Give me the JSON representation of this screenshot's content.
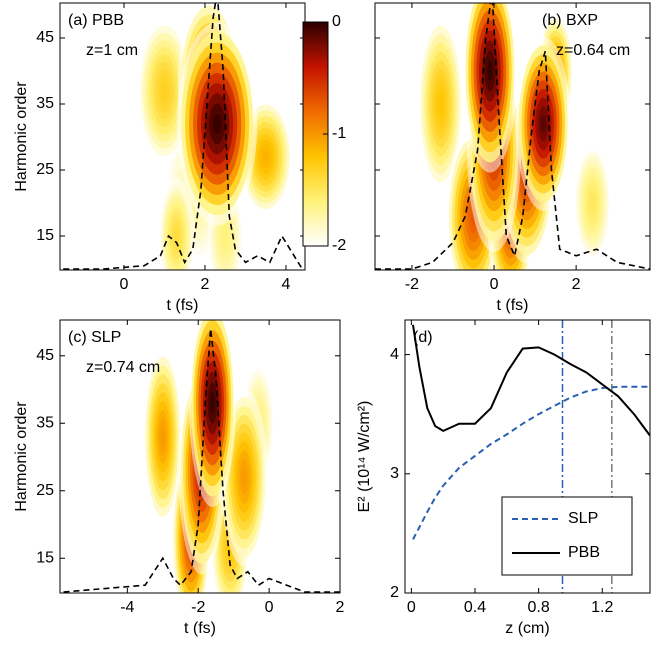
{
  "chart_data": [
    {
      "type": "heatmap",
      "label": "(a) PBB",
      "note": "z=1 cm",
      "xlabel": "t (fs)",
      "ylabel": "Harmonic order",
      "xlim": [
        -1.58,
        4.47
      ],
      "ylim": [
        9.85,
        50.3
      ],
      "xticks": [
        0,
        2,
        4
      ],
      "yticks": [
        15,
        25,
        35,
        45
      ],
      "show_yticklabels": true,
      "clim": [
        -2,
        0
      ],
      "cticks": [
        0,
        -1,
        -2
      ],
      "colorbar": true,
      "colormap": [
        "#ffffff",
        "#fff27a",
        "#ffc400",
        "#f06a00",
        "#c41200",
        "#2a0000"
      ],
      "blobs": [
        {
          "x": 1.8,
          "y": 22,
          "value": -1.7,
          "sx": 0.35,
          "sy": 5
        },
        {
          "x": 2.5,
          "y": 15,
          "value": -1.6,
          "sx": 0.2,
          "sy": 4
        },
        {
          "x": 1.3,
          "y": 15,
          "value": -1.4,
          "sx": 0.2,
          "sy": 4
        },
        {
          "x": 1.0,
          "y": 37,
          "value": -1.3,
          "sx": 0.3,
          "sy": 5
        },
        {
          "x": 3.5,
          "y": 27,
          "value": -1.1,
          "sx": 0.3,
          "sy": 4
        },
        {
          "x": 2.1,
          "y": 38,
          "value": -0.7,
          "sx": 0.35,
          "sy": 6
        },
        {
          "x": 2.3,
          "y": 32,
          "value": 0,
          "sx": 0.45,
          "sy": 7
        }
      ],
      "series": [
        {
          "color": "#000000",
          "dash": true,
          "x": [
            -1.5,
            -0.5,
            0.5,
            0.9,
            1.1,
            1.3,
            1.5,
            1.7,
            1.9,
            2.05,
            2.2,
            2.3,
            2.45,
            2.6,
            2.75,
            3.0,
            3.3,
            3.6,
            3.9,
            4.2,
            4.4
          ],
          "values": [
            10,
            10,
            10.5,
            12,
            15,
            14,
            11,
            13,
            22,
            35,
            48,
            52,
            40,
            18,
            13,
            11,
            12,
            11,
            15,
            12,
            10
          ]
        }
      ]
    },
    {
      "type": "heatmap",
      "label": "(b) BXP",
      "note": "z=0.64 cm",
      "xlabel": "t (fs)",
      "xlim": [
        -2.9,
        3.8
      ],
      "ylim": [
        9.85,
        50.3
      ],
      "xticks": [
        -2,
        0,
        2
      ],
      "yticks": [
        15,
        25,
        35,
        45
      ],
      "show_yticklabels": false,
      "clim": [
        -2,
        0
      ],
      "colorbar": false,
      "colormap": [
        "#ffffff",
        "#fff27a",
        "#ffc400",
        "#f06a00",
        "#c41200",
        "#2a0000"
      ],
      "blobs": [
        {
          "x": 2.4,
          "y": 20,
          "value": -1.5,
          "sx": 0.2,
          "sy": 4
        },
        {
          "x": -1.3,
          "y": 35,
          "value": -1.2,
          "sx": 0.25,
          "sy": 6
        },
        {
          "x": 1.5,
          "y": 40,
          "value": -1.0,
          "sx": 0.2,
          "sy": 4
        },
        {
          "x": -0.5,
          "y": 18,
          "value": -0.7,
          "sx": 0.3,
          "sy": 6
        },
        {
          "x": 0.4,
          "y": 16,
          "value": -0.7,
          "sx": 0.25,
          "sy": 5
        },
        {
          "x": 0.8,
          "y": 24,
          "value": -0.6,
          "sx": 0.3,
          "sy": 6
        },
        {
          "x": 0,
          "y": 28,
          "value": -0.5,
          "sx": 0.3,
          "sy": 7
        },
        {
          "x": 1.2,
          "y": 32,
          "value": -0.1,
          "sx": 0.3,
          "sy": 6
        },
        {
          "x": -0.1,
          "y": 40,
          "value": 0,
          "sx": 0.3,
          "sy": 7
        }
      ],
      "series": [
        {
          "color": "#000000",
          "dash": true,
          "x": [
            -2.9,
            -2,
            -1.5,
            -1.0,
            -0.7,
            -0.4,
            -0.2,
            -0.05,
            0.1,
            0.3,
            0.5,
            0.7,
            0.9,
            1.1,
            1.25,
            1.4,
            1.6,
            2.0,
            2.5,
            3.0,
            3.8
          ],
          "values": [
            10,
            10,
            11,
            14,
            18,
            28,
            45,
            52,
            35,
            15,
            12,
            18,
            30,
            40,
            43,
            25,
            13,
            12,
            13,
            11,
            10
          ]
        }
      ]
    },
    {
      "type": "heatmap",
      "label": "(c) SLP",
      "note": "z=0.74 cm",
      "xlabel": "t (fs)",
      "ylabel": "Harmonic order",
      "xlim": [
        -5.9,
        2
      ],
      "ylim": [
        9.85,
        50.3
      ],
      "xticks": [
        -4,
        -2,
        0,
        2
      ],
      "yticks": [
        15,
        25,
        35,
        45
      ],
      "show_yticklabels": true,
      "clim": [
        -2,
        0
      ],
      "colorbar": false,
      "colormap": [
        "#ffffff",
        "#fff27a",
        "#ffc400",
        "#f06a00",
        "#c41200",
        "#2a0000"
      ],
      "blobs": [
        {
          "x": -0.3,
          "y": 35,
          "value": -1.6,
          "sx": 0.2,
          "sy": 4
        },
        {
          "x": -1.1,
          "y": 17,
          "value": -1.2,
          "sx": 0.25,
          "sy": 5
        },
        {
          "x": -3.0,
          "y": 33,
          "value": -1.0,
          "sx": 0.25,
          "sy": 6
        },
        {
          "x": -0.7,
          "y": 27,
          "value": -1.0,
          "sx": 0.3,
          "sy": 6
        },
        {
          "x": -2.2,
          "y": 18,
          "value": -0.6,
          "sx": 0.25,
          "sy": 6
        },
        {
          "x": -1.9,
          "y": 28,
          "value": -0.4,
          "sx": 0.3,
          "sy": 7
        },
        {
          "x": -1.6,
          "y": 38,
          "value": 0,
          "sx": 0.3,
          "sy": 7
        }
      ],
      "series": [
        {
          "color": "#000000",
          "dash": true,
          "x": [
            -5.8,
            -3.5,
            -3,
            -2.7,
            -2.5,
            -2.2,
            -2,
            -1.8,
            -1.65,
            -1.5,
            -1.3,
            -1.1,
            -0.9,
            -0.6,
            -0.3,
            0,
            0.5,
            1,
            2
          ],
          "values": [
            10,
            11,
            15,
            12,
            11,
            13,
            20,
            38,
            49,
            42,
            25,
            14,
            12,
            13,
            11,
            12,
            11,
            10,
            10
          ]
        }
      ]
    },
    {
      "type": "line",
      "label": "(d)",
      "xlabel": "z (cm)",
      "ylabel": "E² (10¹⁴ W/cm²)",
      "xlim": [
        -0.04,
        1.5
      ],
      "ylim": [
        2,
        4.29
      ],
      "xticks": [
        0,
        0.4,
        0.8,
        1.2
      ],
      "yticks": [
        2,
        3,
        4
      ],
      "show_yticklabels": true,
      "legend": "lower right",
      "x": [
        0.01,
        0.05,
        0.1,
        0.15,
        0.2,
        0.3,
        0.4,
        0.5,
        0.6,
        0.7,
        0.8,
        0.9,
        1.0,
        1.1,
        1.2,
        1.3,
        1.4,
        1.5
      ],
      "series": [
        {
          "name": "SLP",
          "color": "#2b5fb4",
          "dash": true,
          "values": [
            2.45,
            2.55,
            2.68,
            2.8,
            2.9,
            3.05,
            3.15,
            3.25,
            3.33,
            3.42,
            3.5,
            3.57,
            3.64,
            3.69,
            3.72,
            3.73,
            3.73,
            3.73
          ]
        },
        {
          "name": "PBB",
          "color": "#000000",
          "dash": false,
          "values": [
            4.25,
            3.9,
            3.55,
            3.4,
            3.36,
            3.42,
            3.42,
            3.55,
            3.85,
            4.05,
            4.06,
            4.0,
            3.92,
            3.85,
            3.75,
            3.65,
            3.5,
            3.32
          ]
        }
      ],
      "vlines": [
        {
          "x": 0.95,
          "color": "#2b5fb4"
        },
        {
          "x": 1.26,
          "color": "#777777"
        }
      ]
    }
  ]
}
